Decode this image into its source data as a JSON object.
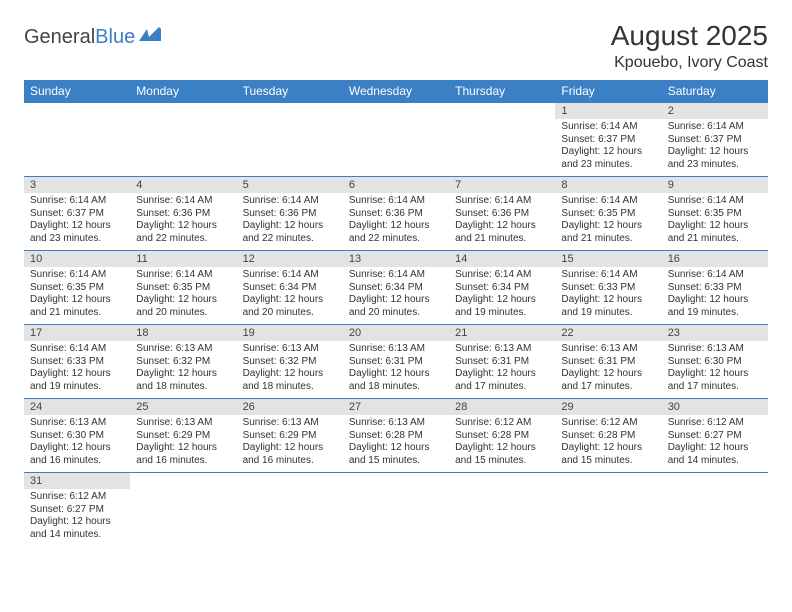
{
  "logo": {
    "text1": "General",
    "text2": "Blue"
  },
  "title": "August 2025",
  "location": "Kpouebo, Ivory Coast",
  "colors": {
    "header_bg": "#3b7fc4",
    "header_fg": "#ffffff",
    "daynum_bg": "#e3e3e3",
    "rule": "#3b7fc4",
    "text": "#333333"
  },
  "columns": [
    "Sunday",
    "Monday",
    "Tuesday",
    "Wednesday",
    "Thursday",
    "Friday",
    "Saturday"
  ],
  "weeks": [
    [
      null,
      null,
      null,
      null,
      null,
      {
        "n": "1",
        "sr": "6:14 AM",
        "ss": "6:37 PM",
        "dl": "12 hours and 23 minutes."
      },
      {
        "n": "2",
        "sr": "6:14 AM",
        "ss": "6:37 PM",
        "dl": "12 hours and 23 minutes."
      }
    ],
    [
      {
        "n": "3",
        "sr": "6:14 AM",
        "ss": "6:37 PM",
        "dl": "12 hours and 23 minutes."
      },
      {
        "n": "4",
        "sr": "6:14 AM",
        "ss": "6:36 PM",
        "dl": "12 hours and 22 minutes."
      },
      {
        "n": "5",
        "sr": "6:14 AM",
        "ss": "6:36 PM",
        "dl": "12 hours and 22 minutes."
      },
      {
        "n": "6",
        "sr": "6:14 AM",
        "ss": "6:36 PM",
        "dl": "12 hours and 22 minutes."
      },
      {
        "n": "7",
        "sr": "6:14 AM",
        "ss": "6:36 PM",
        "dl": "12 hours and 21 minutes."
      },
      {
        "n": "8",
        "sr": "6:14 AM",
        "ss": "6:35 PM",
        "dl": "12 hours and 21 minutes."
      },
      {
        "n": "9",
        "sr": "6:14 AM",
        "ss": "6:35 PM",
        "dl": "12 hours and 21 minutes."
      }
    ],
    [
      {
        "n": "10",
        "sr": "6:14 AM",
        "ss": "6:35 PM",
        "dl": "12 hours and 21 minutes."
      },
      {
        "n": "11",
        "sr": "6:14 AM",
        "ss": "6:35 PM",
        "dl": "12 hours and 20 minutes."
      },
      {
        "n": "12",
        "sr": "6:14 AM",
        "ss": "6:34 PM",
        "dl": "12 hours and 20 minutes."
      },
      {
        "n": "13",
        "sr": "6:14 AM",
        "ss": "6:34 PM",
        "dl": "12 hours and 20 minutes."
      },
      {
        "n": "14",
        "sr": "6:14 AM",
        "ss": "6:34 PM",
        "dl": "12 hours and 19 minutes."
      },
      {
        "n": "15",
        "sr": "6:14 AM",
        "ss": "6:33 PM",
        "dl": "12 hours and 19 minutes."
      },
      {
        "n": "16",
        "sr": "6:14 AM",
        "ss": "6:33 PM",
        "dl": "12 hours and 19 minutes."
      }
    ],
    [
      {
        "n": "17",
        "sr": "6:14 AM",
        "ss": "6:33 PM",
        "dl": "12 hours and 19 minutes."
      },
      {
        "n": "18",
        "sr": "6:13 AM",
        "ss": "6:32 PM",
        "dl": "12 hours and 18 minutes."
      },
      {
        "n": "19",
        "sr": "6:13 AM",
        "ss": "6:32 PM",
        "dl": "12 hours and 18 minutes."
      },
      {
        "n": "20",
        "sr": "6:13 AM",
        "ss": "6:31 PM",
        "dl": "12 hours and 18 minutes."
      },
      {
        "n": "21",
        "sr": "6:13 AM",
        "ss": "6:31 PM",
        "dl": "12 hours and 17 minutes."
      },
      {
        "n": "22",
        "sr": "6:13 AM",
        "ss": "6:31 PM",
        "dl": "12 hours and 17 minutes."
      },
      {
        "n": "23",
        "sr": "6:13 AM",
        "ss": "6:30 PM",
        "dl": "12 hours and 17 minutes."
      }
    ],
    [
      {
        "n": "24",
        "sr": "6:13 AM",
        "ss": "6:30 PM",
        "dl": "12 hours and 16 minutes."
      },
      {
        "n": "25",
        "sr": "6:13 AM",
        "ss": "6:29 PM",
        "dl": "12 hours and 16 minutes."
      },
      {
        "n": "26",
        "sr": "6:13 AM",
        "ss": "6:29 PM",
        "dl": "12 hours and 16 minutes."
      },
      {
        "n": "27",
        "sr": "6:13 AM",
        "ss": "6:28 PM",
        "dl": "12 hours and 15 minutes."
      },
      {
        "n": "28",
        "sr": "6:12 AM",
        "ss": "6:28 PM",
        "dl": "12 hours and 15 minutes."
      },
      {
        "n": "29",
        "sr": "6:12 AM",
        "ss": "6:28 PM",
        "dl": "12 hours and 15 minutes."
      },
      {
        "n": "30",
        "sr": "6:12 AM",
        "ss": "6:27 PM",
        "dl": "12 hours and 14 minutes."
      }
    ],
    [
      {
        "n": "31",
        "sr": "6:12 AM",
        "ss": "6:27 PM",
        "dl": "12 hours and 14 minutes."
      },
      null,
      null,
      null,
      null,
      null,
      null
    ]
  ],
  "labels": {
    "sunrise": "Sunrise:",
    "sunset": "Sunset:",
    "daylight": "Daylight:"
  }
}
